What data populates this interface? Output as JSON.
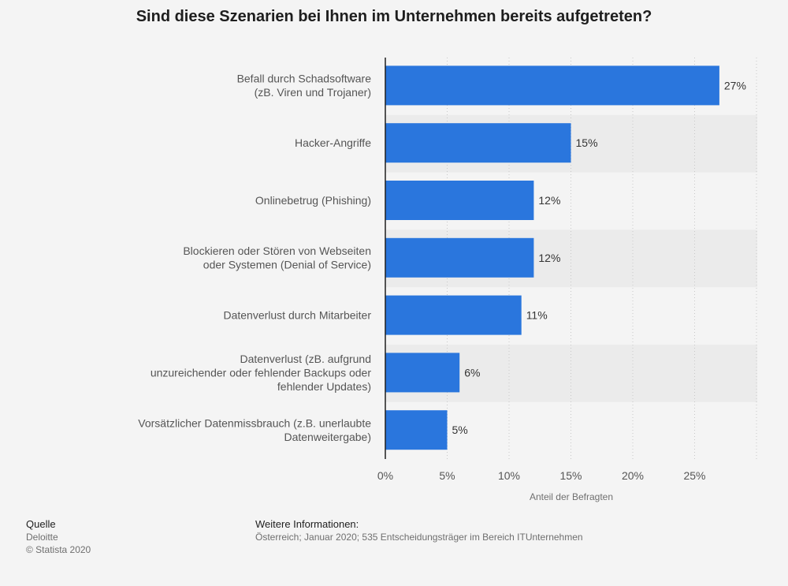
{
  "chart_data": {
    "type": "bar",
    "orientation": "horizontal",
    "title": "Sind diese Szenarien bei Ihnen im Unternehmen bereits aufgetreten?",
    "xlabel": "Anteil der Befragten",
    "ylabel": "",
    "xlim": [
      0,
      30
    ],
    "x_ticks": [
      "0%",
      "5%",
      "10%",
      "15%",
      "20%",
      "25%"
    ],
    "grid": true,
    "categories": [
      [
        "Befall durch Schadsoftware",
        "(zB. Viren und Trojaner)"
      ],
      [
        "Hacker-Angriffe"
      ],
      [
        "Onlinebetrug (Phishing)"
      ],
      [
        "Blockieren oder Stören von Webseiten",
        "oder Systemen (Denial of Service)"
      ],
      [
        "Datenverlust durch Mitarbeiter"
      ],
      [
        "Datenverlust (zB. aufgrund",
        "unzureichender oder fehlender Backups oder",
        "fehlender Updates)"
      ],
      [
        "Vorsätzlicher Datenmissbrauch (z.B. unerlaubte",
        "Datenweitergabe)"
      ]
    ],
    "values": [
      27,
      15,
      12,
      12,
      11,
      6,
      5
    ],
    "value_labels": [
      "27%",
      "15%",
      "12%",
      "12%",
      "11%",
      "6%",
      "5%"
    ],
    "bar_color": "#2a76dd"
  },
  "footer": {
    "source_heading": "Quelle",
    "source_name": "Deloitte",
    "copyright": "© Statista 2020",
    "info_heading": "Weitere Informationen:",
    "info_text": "Österreich; Januar 2020; 535 Entscheidungsträger im Bereich ITUnternehmen"
  }
}
